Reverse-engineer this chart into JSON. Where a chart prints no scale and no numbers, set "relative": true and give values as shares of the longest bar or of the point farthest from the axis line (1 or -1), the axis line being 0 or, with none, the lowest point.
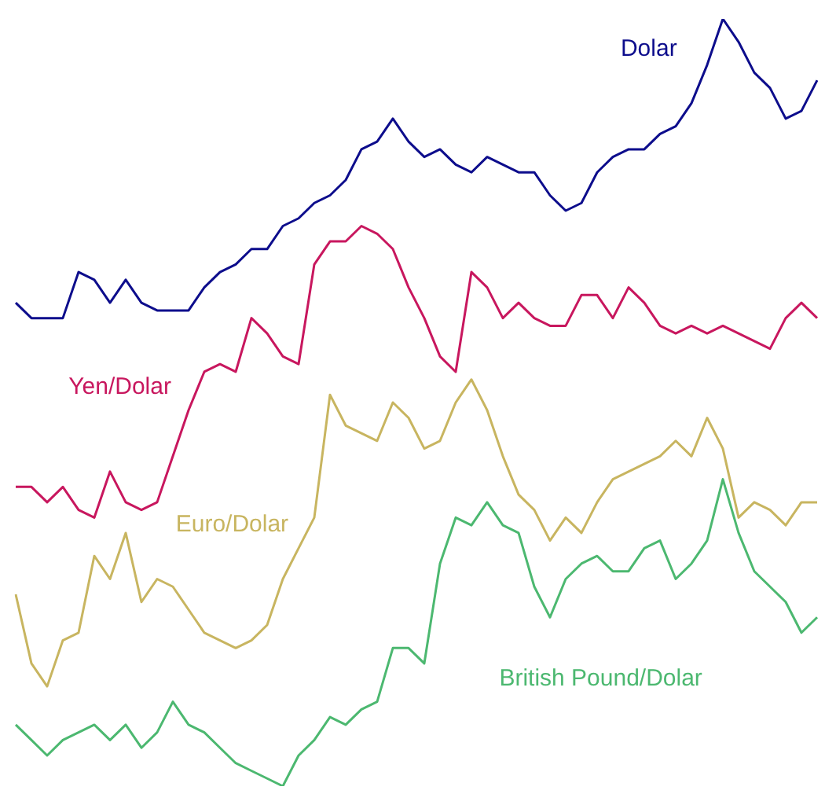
{
  "chart_data": {
    "type": "line",
    "relative": true,
    "legend": false,
    "marker": "none",
    "line_style": "solid",
    "categories": [
      null,
      null,
      null,
      null,
      null,
      null,
      null,
      null,
      null,
      null,
      null,
      null,
      null,
      null,
      null,
      null,
      null,
      null,
      null,
      null,
      null,
      null,
      null,
      null,
      null,
      null,
      null,
      null,
      null,
      null,
      null,
      null,
      null,
      null,
      null,
      null,
      null,
      null,
      null,
      null,
      null,
      null,
      null,
      null,
      null,
      null,
      null,
      null,
      null,
      null,
      null,
      null
    ],
    "series": [
      {
        "name": "Dolar",
        "color": "#0d0d8c",
        "values": [
          0.63,
          0.61,
          0.61,
          0.61,
          0.67,
          0.66,
          0.63,
          0.66,
          0.63,
          0.62,
          0.62,
          0.62,
          0.65,
          0.67,
          0.68,
          0.7,
          0.7,
          0.73,
          0.74,
          0.76,
          0.77,
          0.79,
          0.83,
          0.84,
          0.87,
          0.84,
          0.82,
          0.83,
          0.81,
          0.8,
          0.82,
          0.81,
          0.8,
          0.8,
          0.77,
          0.75,
          0.76,
          0.8,
          0.82,
          0.83,
          0.83,
          0.85,
          0.86,
          0.89,
          0.94,
          1,
          0.97,
          0.93,
          0.91,
          0.87,
          0.88,
          0.92
        ]
      },
      {
        "name": "Yen/Dolar",
        "color": "#c8175e",
        "values": [
          0.39,
          0.39,
          0.37,
          0.39,
          0.36,
          0.35,
          0.41,
          0.37,
          0.36,
          0.37,
          0.43,
          0.49,
          0.54,
          0.55,
          0.54,
          0.61,
          0.59,
          0.56,
          0.55,
          0.68,
          0.71,
          0.71,
          0.73,
          0.72,
          0.7,
          0.65,
          0.61,
          0.56,
          0.54,
          0.67,
          0.65,
          0.61,
          0.63,
          0.61,
          0.6,
          0.6,
          0.64,
          0.64,
          0.61,
          0.65,
          0.63,
          0.6,
          0.59,
          0.6,
          0.59,
          0.6,
          0.59,
          0.58,
          0.57,
          0.61,
          0.63,
          0.61
        ]
      },
      {
        "name": "Euro/Dolar",
        "color": "#c8b560",
        "values": [
          0.25,
          0.16,
          0.13,
          0.19,
          0.2,
          0.3,
          0.27,
          0.33,
          0.24,
          0.27,
          0.26,
          0.23,
          0.2,
          0.19,
          0.18,
          0.19,
          0.21,
          0.27,
          0.31,
          0.35,
          0.51,
          0.47,
          0.46,
          0.45,
          0.5,
          0.48,
          0.44,
          0.45,
          0.5,
          0.53,
          0.49,
          0.43,
          0.38,
          0.36,
          0.32,
          0.35,
          0.33,
          0.37,
          0.4,
          0.41,
          0.42,
          0.43,
          0.45,
          0.43,
          0.48,
          0.44,
          0.35,
          0.37,
          0.36,
          0.34,
          0.37,
          0.37
        ]
      },
      {
        "name": "British Pound/Dolar",
        "color": "#4cb870",
        "values": [
          0.08,
          0.06,
          0.04,
          0.06,
          0.07,
          0.08,
          0.06,
          0.08,
          0.05,
          0.07,
          0.11,
          0.08,
          0.07,
          0.05,
          0.03,
          0.02,
          0.01,
          0,
          0.04,
          0.06,
          0.09,
          0.08,
          0.1,
          0.11,
          0.18,
          0.18,
          0.16,
          0.29,
          0.35,
          0.34,
          0.37,
          0.34,
          0.33,
          0.26,
          0.22,
          0.27,
          0.29,
          0.3,
          0.28,
          0.28,
          0.31,
          0.32,
          0.27,
          0.29,
          0.32,
          0.4,
          0.33,
          0.28,
          0.26,
          0.24,
          0.2,
          0.22
        ]
      }
    ]
  }
}
